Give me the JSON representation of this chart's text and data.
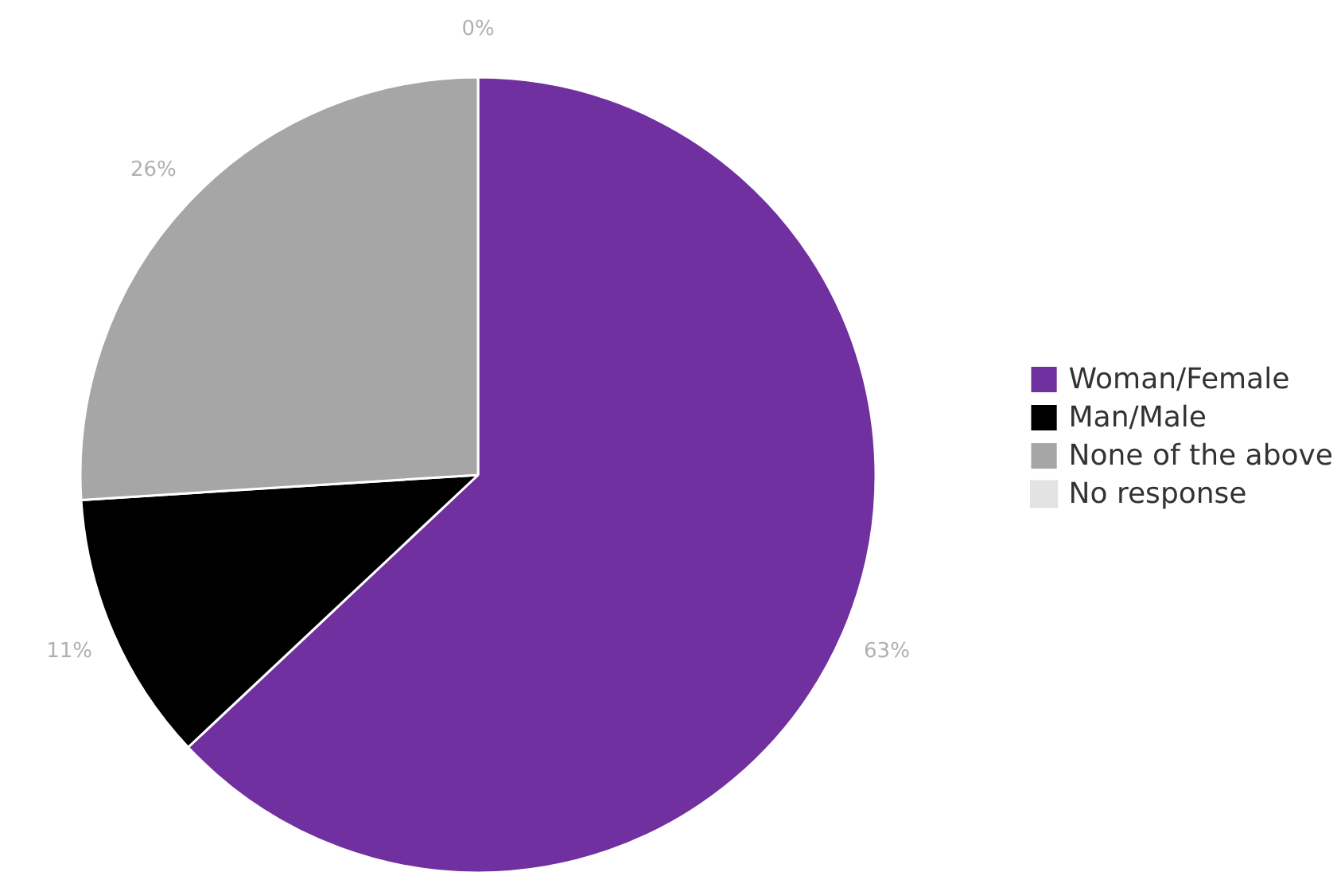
{
  "chart_data": {
    "type": "pie",
    "categories": [
      "Woman/Female",
      "Man/Male",
      "None of the above",
      "No response"
    ],
    "values": [
      63,
      11,
      26,
      0
    ],
    "colors": [
      "#7030a0",
      "#000000",
      "#a6a6a6",
      "#e3e3e3"
    ],
    "value_labels": [
      "63%",
      "11%",
      "26%",
      "0%"
    ],
    "legend": "right"
  }
}
